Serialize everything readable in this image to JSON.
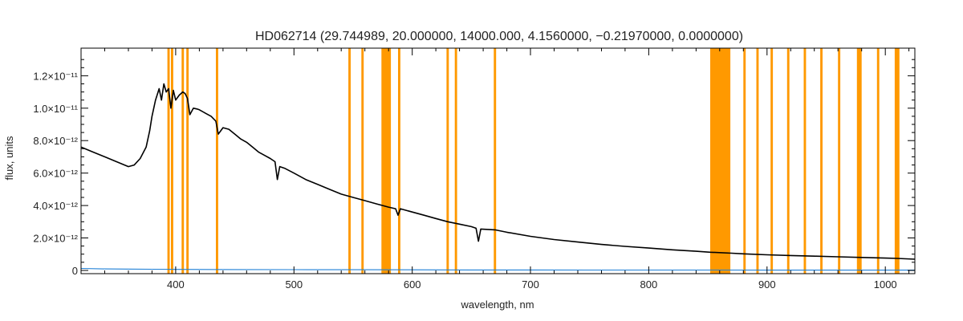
{
  "chart_data": {
    "type": "line",
    "title": "HD062714   (29.744989, 20.000000, 14000.000, 4.1560000, −0.21970000, 0.0000000)",
    "xlabel": "wavelength, nm",
    "ylabel": "flux, units",
    "xlim": [
      320,
      1025
    ],
    "ylim": [
      -2e-13,
      1.37e-11
    ],
    "x_ticks": [
      {
        "value": 400,
        "label": "400"
      },
      {
        "value": 500,
        "label": "500"
      },
      {
        "value": 600,
        "label": "600"
      },
      {
        "value": 700,
        "label": "700"
      },
      {
        "value": 800,
        "label": "800"
      },
      {
        "value": 900,
        "label": "900"
      },
      {
        "value": 1000,
        "label": "1000"
      }
    ],
    "y_ticks": [
      {
        "value": 0,
        "label": "0"
      },
      {
        "value": 2e-12,
        "label": "2.0×10⁻¹²"
      },
      {
        "value": 4e-12,
        "label": "4.0×10⁻¹²"
      },
      {
        "value": 6e-12,
        "label": "6.0×10⁻¹²"
      },
      {
        "value": 8e-12,
        "label": "8.0×10⁻¹²"
      },
      {
        "value": 1e-11,
        "label": "1.0×10⁻¹¹"
      },
      {
        "value": 1.2e-11,
        "label": "1.2×10⁻¹¹"
      }
    ],
    "grid": false,
    "colors": {
      "flux": "#000000",
      "error": "#1e7fd6",
      "band": "#ff9900"
    },
    "masked_bands": [
      [
        393,
        395
      ],
      [
        396,
        398
      ],
      [
        405,
        407
      ],
      [
        409,
        411
      ],
      [
        434,
        436
      ],
      [
        546,
        548
      ],
      [
        557,
        559
      ],
      [
        574,
        582
      ],
      [
        588,
        590
      ],
      [
        629,
        631
      ],
      [
        636,
        638
      ],
      [
        669,
        671
      ],
      [
        852,
        869
      ],
      [
        880,
        882
      ],
      [
        891,
        893
      ],
      [
        903,
        905
      ],
      [
        917,
        919
      ],
      [
        931,
        933
      ],
      [
        945,
        947
      ],
      [
        960,
        962
      ],
      [
        976,
        980
      ],
      [
        993,
        995
      ],
      [
        1008,
        1012
      ]
    ],
    "series": [
      {
        "role": "flux",
        "x": [
          320,
          330,
          340,
          350,
          360,
          365,
          370,
          375,
          378,
          380,
          383,
          386,
          388,
          390,
          392,
          394,
          396,
          398,
          400,
          403,
          406,
          408,
          410,
          412,
          415,
          418,
          420,
          425,
          430,
          434,
          436,
          440,
          445,
          450,
          455,
          460,
          465,
          470,
          475,
          480,
          484,
          486,
          488,
          492,
          500,
          510,
          520,
          530,
          540,
          550,
          560,
          570,
          580,
          586,
          588,
          590,
          600,
          610,
          620,
          630,
          640,
          650,
          654,
          656,
          658,
          670,
          680,
          700,
          720,
          740,
          760,
          780,
          800,
          820,
          840,
          852,
          870,
          880,
          900,
          920,
          940,
          960,
          980,
          1000,
          1010,
          1025
        ],
        "y": [
          7.6e-12,
          7.3e-12,
          7e-12,
          6.7e-12,
          6.4e-12,
          6.5e-12,
          6.9e-12,
          7.6e-12,
          8.6e-12,
          9.5e-12,
          1.05e-11,
          1.12e-11,
          1.05e-11,
          1.15e-11,
          1.1e-11,
          1.12e-11,
          1e-11,
          1.11e-11,
          1.05e-11,
          1.08e-11,
          1.1e-11,
          1.09e-11,
          1.06e-11,
          9.6e-12,
          1e-11,
          9.95e-12,
          9.9e-12,
          9.7e-12,
          9.5e-12,
          9.2e-12,
          8.4e-12,
          8.8e-12,
          8.7e-12,
          8.4e-12,
          8.1e-12,
          7.9e-12,
          7.6e-12,
          7.3e-12,
          7.1e-12,
          6.9e-12,
          6.7e-12,
          5.6e-12,
          6.4e-12,
          6.3e-12,
          6e-12,
          5.6e-12,
          5.3e-12,
          5e-12,
          4.7e-12,
          4.5e-12,
          4.3e-12,
          4.1e-12,
          3.9e-12,
          3.8e-12,
          3.4e-12,
          3.8e-12,
          3.6e-12,
          3.4e-12,
          3.2e-12,
          3e-12,
          2.85e-12,
          2.7e-12,
          2.6e-12,
          1.8e-12,
          2.55e-12,
          2.5e-12,
          2.35e-12,
          2.1e-12,
          1.9e-12,
          1.75e-12,
          1.6e-12,
          1.48e-12,
          1.38e-12,
          1.27e-12,
          1.18e-12,
          1.12e-12,
          1.06e-12,
          1.02e-12,
          9.6e-13,
          9.2e-13,
          8.8e-13,
          8.4e-13,
          8e-13,
          7.6e-13,
          7.4e-13,
          6.9e-13
        ]
      },
      {
        "role": "error",
        "x": [
          320,
          340,
          360,
          380,
          400,
          450,
          500,
          550,
          600,
          650,
          700,
          750,
          800,
          850,
          900,
          950,
          1000,
          1025
        ],
        "y": [
          1.2e-13,
          9e-14,
          8e-14,
          7e-14,
          6e-14,
          5e-14,
          4.5e-14,
          4e-14,
          3.5e-14,
          3e-14,
          2.8e-14,
          2.5e-14,
          2.3e-14,
          2.1e-14,
          2e-14,
          2e-14,
          2e-14,
          2e-14
        ]
      }
    ]
  }
}
